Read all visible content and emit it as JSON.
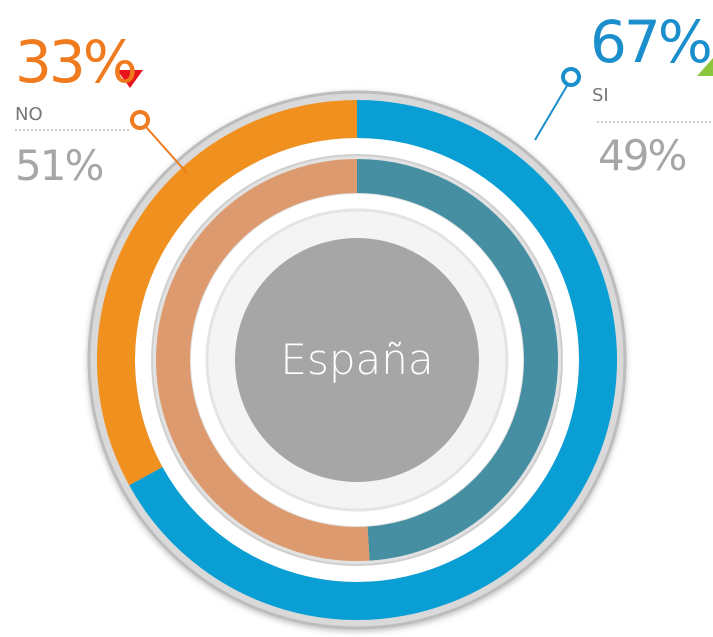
{
  "chart_data": {
    "type": "donut",
    "center_label": "España",
    "categories": [
      "SI",
      "NO"
    ],
    "series": [
      {
        "colors": [
          "#0a9fd4",
          "#f0901e"
        ],
        "values": [
          67,
          33
        ],
        "value_labels": [
          "67%",
          "33%"
        ]
      },
      {
        "colors": [
          "#468fa3",
          "#dc9a6e"
        ],
        "values": [
          49,
          51
        ],
        "value_labels": [
          "49%",
          "51%"
        ]
      }
    ]
  }
}
